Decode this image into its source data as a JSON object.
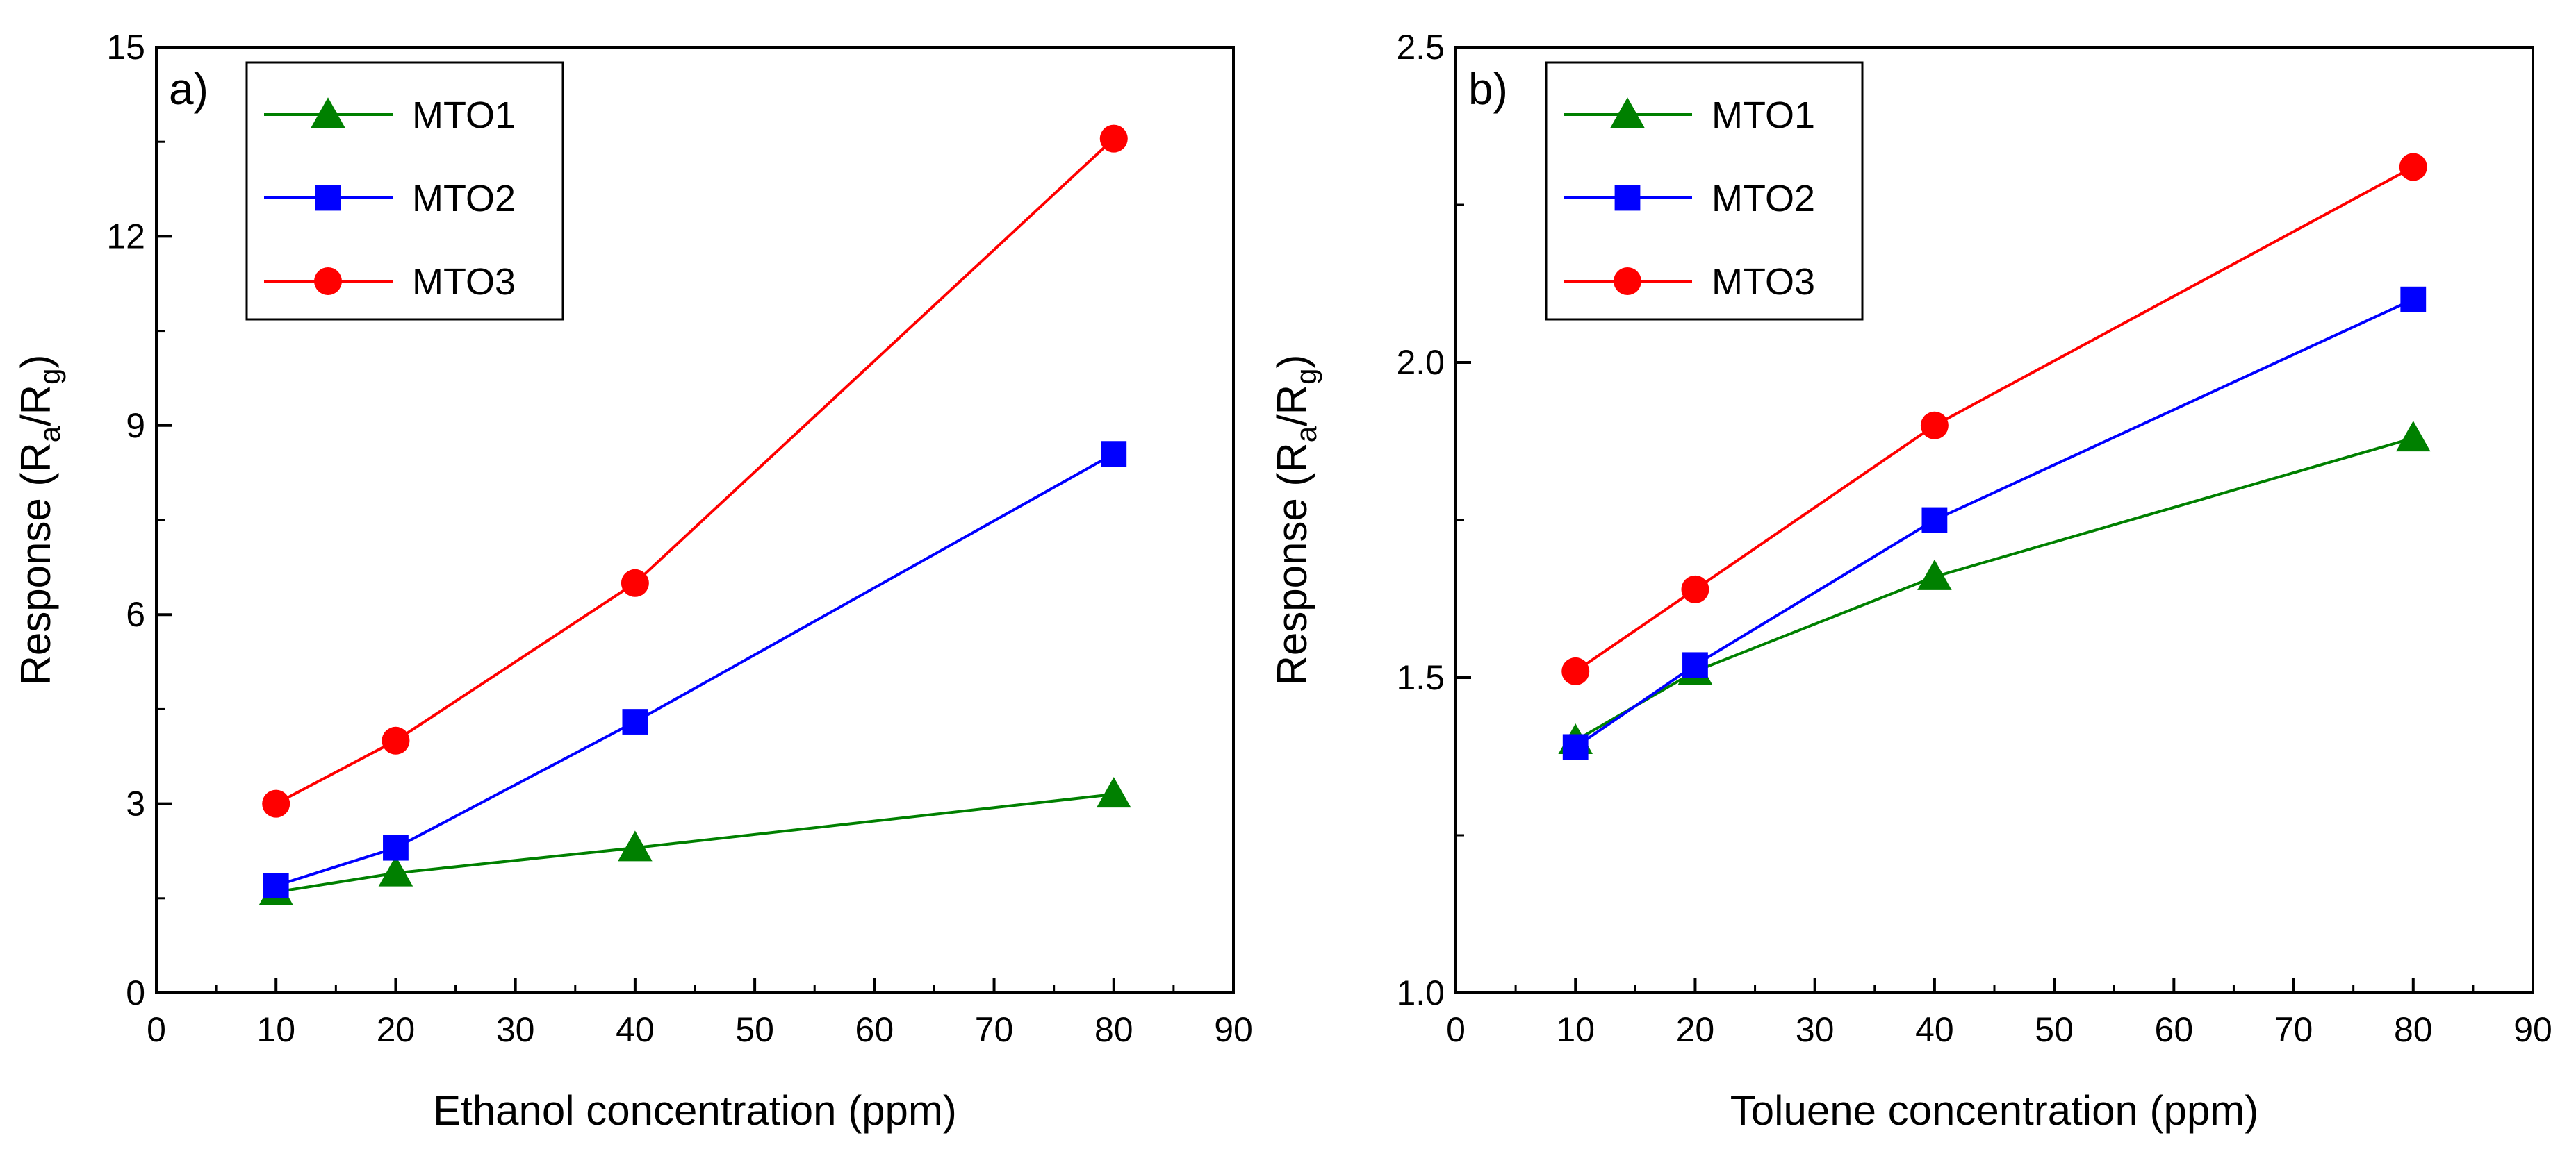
{
  "chart_data": [
    {
      "type": "line",
      "panel_label": "a)",
      "title": "",
      "xlabel": "Ethanol concentration (ppm)",
      "ylabel": {
        "main": "Response (R",
        "sub1": "a",
        "mid": "/R",
        "sub2": "g",
        "end": ")"
      },
      "xlim": [
        0,
        90
      ],
      "ylim": [
        0,
        15
      ],
      "xticks": [
        0,
        10,
        20,
        30,
        40,
        50,
        60,
        70,
        80,
        90
      ],
      "xtick_labels": [
        "0",
        "10",
        "20",
        "30",
        "40",
        "50",
        "60",
        "70",
        "80",
        "90"
      ],
      "yticks": [
        0,
        3,
        6,
        9,
        12,
        15
      ],
      "ytick_labels": [
        "0",
        "3",
        "6",
        "9",
        "12",
        "15"
      ],
      "grid": false,
      "legend_position": "top-left",
      "x": [
        10,
        20,
        40,
        80
      ],
      "series": [
        {
          "name": "MTO1",
          "color": "#008000",
          "marker": "triangle",
          "values": [
            1.6,
            1.9,
            2.3,
            3.15
          ]
        },
        {
          "name": "MTO2",
          "color": "#0000ff",
          "marker": "square",
          "values": [
            1.7,
            2.3,
            4.3,
            8.55
          ]
        },
        {
          "name": "MTO3",
          "color": "#ff0000",
          "marker": "circle",
          "values": [
            3.0,
            4.0,
            6.5,
            13.55
          ]
        }
      ]
    },
    {
      "type": "line",
      "panel_label": "b)",
      "title": "",
      "xlabel": "Toluene concentration (ppm)",
      "ylabel": {
        "main": "Response (R",
        "sub1": "a",
        "mid": "/R",
        "sub2": "g",
        "end": ")"
      },
      "xlim": [
        0,
        90
      ],
      "ylim": [
        1.0,
        2.5
      ],
      "xticks": [
        0,
        10,
        20,
        30,
        40,
        50,
        60,
        70,
        80,
        90
      ],
      "xtick_labels": [
        "0",
        "10",
        "20",
        "30",
        "40",
        "50",
        "60",
        "70",
        "80",
        "90"
      ],
      "yticks": [
        1.0,
        1.5,
        2.0,
        2.5
      ],
      "ytick_labels": [
        "1.0",
        "1.5",
        "2.0",
        "2.5"
      ],
      "grid": false,
      "legend_position": "top-left",
      "x": [
        10,
        20,
        40,
        80
      ],
      "series": [
        {
          "name": "MTO1",
          "color": "#008000",
          "marker": "triangle",
          "values": [
            1.4,
            1.51,
            1.66,
            1.88
          ]
        },
        {
          "name": "MTO2",
          "color": "#0000ff",
          "marker": "square",
          "values": [
            1.39,
            1.52,
            1.75,
            2.1
          ]
        },
        {
          "name": "MTO3",
          "color": "#ff0000",
          "marker": "circle",
          "values": [
            1.51,
            1.64,
            1.9,
            2.31
          ]
        }
      ]
    }
  ]
}
